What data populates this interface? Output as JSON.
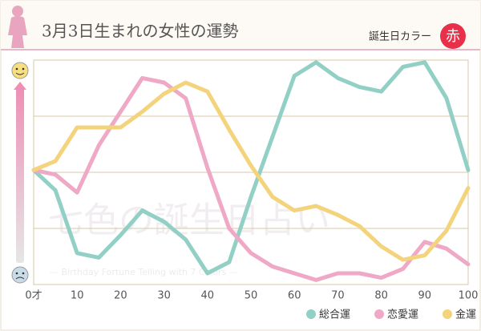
{
  "chart_data": {
    "type": "line",
    "title": "3月3日生まれの女性の運勢",
    "color_label": "誕生日カラー",
    "color_name": "赤",
    "watermark": "七色の誕生日占い",
    "watermark_subtitle": "— Birthday Fortune Telling with 7 Colors —",
    "x": [
      0,
      5,
      10,
      15,
      20,
      25,
      30,
      35,
      40,
      45,
      50,
      55,
      60,
      65,
      70,
      75,
      80,
      85,
      90,
      95,
      100
    ],
    "xlim": [
      0,
      100
    ],
    "xticks": [
      {
        "value": 0,
        "label": "0才"
      },
      10,
      20,
      30,
      40,
      50,
      60,
      70,
      80,
      90,
      100
    ],
    "ylim": [
      0,
      100
    ],
    "yticks": [
      25,
      50,
      75
    ],
    "grid": true,
    "legend": "bottom-right",
    "series": [
      {
        "name": "総合運",
        "color": "#92d0c6",
        "values": [
          51,
          42,
          14,
          12,
          22,
          33,
          28,
          20,
          5,
          10,
          39,
          66,
          93,
          99,
          92,
          88,
          86,
          97,
          99,
          83,
          51
        ]
      },
      {
        "name": "恋愛運",
        "color": "#efa8c5",
        "values": [
          51,
          49,
          41,
          62,
          77,
          92,
          90,
          83,
          52,
          25,
          14,
          8,
          5,
          2,
          5,
          5,
          3,
          7,
          19,
          16,
          9
        ]
      },
      {
        "name": "金運",
        "color": "#f3d47c",
        "values": [
          51,
          55,
          70,
          70,
          70,
          77,
          85,
          90,
          86,
          69,
          53,
          39,
          33,
          35,
          31,
          26,
          17,
          11,
          13,
          24,
          43
        ]
      }
    ]
  }
}
